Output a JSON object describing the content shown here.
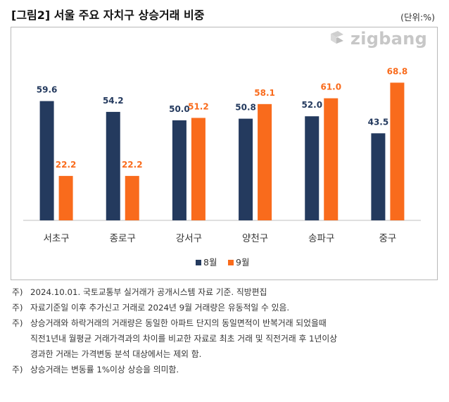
{
  "header": {
    "title": "[그림2] 서울 주요 자치구 상승거래 비중",
    "unit": "(단위:%)"
  },
  "logo": {
    "text": "zigbang"
  },
  "colors": {
    "aug": "#243a5e",
    "sep": "#f96b1c",
    "axis": "#bfbfbf"
  },
  "chart_data": {
    "type": "bar",
    "title": "서울 주요 자치구 상승거래 비중",
    "categories": [
      "서초구",
      "종로구",
      "강서구",
      "양천구",
      "송파구",
      "중구"
    ],
    "series": [
      {
        "name": "8월",
        "values": [
          59.6,
          54.2,
          50.0,
          50.8,
          52.0,
          43.5
        ],
        "labels": [
          "59.6",
          "54.2",
          "50.0",
          "50.8",
          "52.0",
          "43.5"
        ]
      },
      {
        "name": "9월",
        "values": [
          22.2,
          22.2,
          51.2,
          58.1,
          61.0,
          68.8
        ],
        "labels": [
          "22.2",
          "22.2",
          "51.2",
          "58.1",
          "61.0",
          "68.8"
        ]
      }
    ],
    "ylim": [
      0,
      70
    ],
    "grid": false,
    "legend": "bottom-center",
    "xlabel": "",
    "ylabel": ""
  },
  "notes": [
    {
      "prefix": "주)",
      "text": "2024.10.01. 국토교통부 실거래가 공개시스템 자료 기준. 직방편집"
    },
    {
      "prefix": "주)",
      "text": "자료기준일 이후 추가신고 거래로 2024년 9월 거래량은 유동적일 수 있음."
    },
    {
      "prefix": "주)",
      "text": "상승거래와 하락거래의 거래량은 동일한 아파트 단지의 동일면적이 반복거래 되었을때"
    },
    {
      "prefix": "",
      "text": "직전1년내 월평균 거래가격과의 차이를 비교한 자료로 최초 거래 및 직전거래 후 1년이상"
    },
    {
      "prefix": "",
      "text": "경과한 거래는 가격변동 분석 대상에서는 제외 함."
    },
    {
      "prefix": "주)",
      "text": "상승거래는 변동률 1%이상 상승을 의미함."
    }
  ]
}
